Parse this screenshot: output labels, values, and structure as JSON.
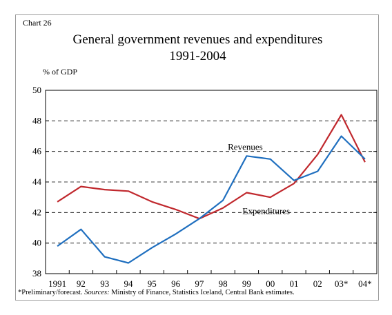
{
  "chart_label": "Chart 26",
  "title_line1": "General government revenues and expenditures",
  "title_line2": "1991-2004",
  "unit_label": "% of GDP",
  "footnote_pre": "*Preliminary/forecast. ",
  "footnote_sources_label": "Sources:",
  "footnote_post": " Ministry of Finance, Statistics Iceland, Central Bank estimates.",
  "colors": {
    "revenues": "#1f6fbf",
    "expenditures": "#c0282d",
    "grid": "#000000"
  },
  "chart_data": {
    "type": "line",
    "title": "General government revenues and expenditures 1991-2004",
    "ylabel": "% of GDP",
    "ylim": [
      38,
      50
    ],
    "yticks": [
      38,
      40,
      42,
      44,
      46,
      48,
      50
    ],
    "categories": [
      "1991",
      "92",
      "93",
      "94",
      "95",
      "96",
      "97",
      "98",
      "99",
      "00",
      "01",
      "02",
      "03*",
      "04*"
    ],
    "grid": "horizontal-dashed",
    "series": [
      {
        "name": "Revenues",
        "values": [
          39.8,
          40.9,
          39.1,
          38.7,
          39.7,
          40.6,
          41.6,
          42.8,
          45.7,
          45.5,
          44.1,
          44.7,
          47.0,
          45.5
        ]
      },
      {
        "name": "Expenditures",
        "values": [
          42.7,
          43.7,
          43.5,
          43.4,
          42.7,
          42.2,
          41.6,
          42.3,
          43.3,
          43.0,
          43.9,
          45.8,
          48.4,
          45.3
        ]
      }
    ]
  }
}
